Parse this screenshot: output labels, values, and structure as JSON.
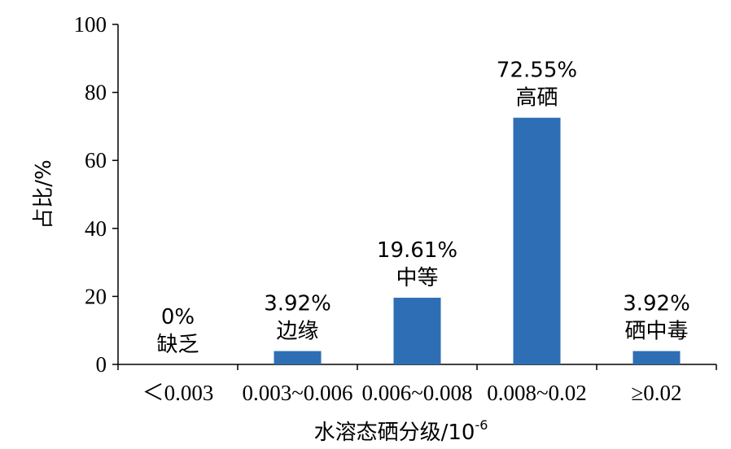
{
  "chart_data": {
    "type": "bar",
    "categories": [
      "＜0.003",
      "0.003~0.006",
      "0.006~0.008",
      "0.008~0.02",
      "≥0.02"
    ],
    "values": [
      0,
      3.92,
      19.61,
      72.55,
      3.92
    ],
    "value_labels": [
      "0%",
      "3.92%",
      "19.61%",
      "72.55%",
      "3.92%"
    ],
    "category_notes": [
      "缺乏",
      "边缘",
      "中等",
      "高硒",
      "硒中毒"
    ],
    "xlabel": "水溶态硒分级/10",
    "xlabel_sup": "-6",
    "ylabel": "占比/%",
    "ylim": [
      0,
      100
    ],
    "yticks": [
      "0",
      "20",
      "40",
      "60",
      "80",
      "100"
    ],
    "bar_color": "#2e6eb5",
    "grid": false
  }
}
